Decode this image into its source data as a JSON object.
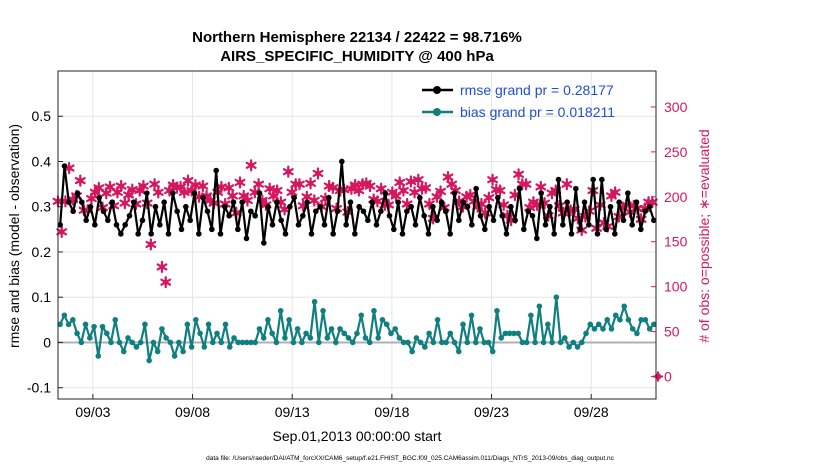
{
  "chart_data": {
    "type": "line",
    "title": "Northern Hemisphere 22134 / 22422 = 98.716%",
    "subtitle": "AIRS_SPECIFIC_HUMIDITY @ 400 hPa",
    "xlabel": "Sep.01,2013 00:00:00 start",
    "ylabel_left": "rmse and bias (model - observation)",
    "ylabel_right": "# of obs: o=possible; ∗=evaluated",
    "footer": "data file: /Users/raeder/DAI/ATM_forcXX/CAM6_setup/f.e21.FHIST_BGC.f09_025.CAM6assim.011/Diags_NTrS_2013-09/obs_diag_output.nc",
    "x_ticks": [
      "09/03",
      "09/08",
      "09/13",
      "09/18",
      "09/23",
      "09/28"
    ],
    "x_tick_days": [
      3,
      8,
      13,
      18,
      23,
      28
    ],
    "xlim_days": [
      1.25,
      31.25
    ],
    "ylim_left": [
      -0.125,
      0.6
    ],
    "yticks_left": [
      "-0.1",
      "0",
      "0.1",
      "0.2",
      "0.3",
      "0.4",
      "0.5"
    ],
    "ylim_right": [
      -25,
      340
    ],
    "yticks_right": [
      "0",
      "50",
      "100",
      "150",
      "200",
      "250",
      "300"
    ],
    "zero_line": 0,
    "grid": true,
    "legend_position": "top-right",
    "colors": {
      "rmse": "#000000",
      "bias": "#0f7f7f",
      "obs": "#d6175f",
      "legend_text": "#1f4fd0",
      "zero_line": "#b0b0b0",
      "grid": "#e6e6e6"
    },
    "series": [
      {
        "name": "rmse grand pr = 0.28177",
        "axis": "left",
        "values": [
          0.26,
          0.39,
          0.31,
          0.29,
          0.33,
          0.31,
          0.27,
          0.3,
          0.26,
          0.32,
          0.29,
          0.27,
          0.31,
          0.26,
          0.24,
          0.26,
          0.28,
          0.31,
          0.24,
          0.27,
          0.33,
          0.24,
          0.3,
          0.26,
          0.31,
          0.24,
          0.33,
          0.29,
          0.25,
          0.3,
          0.27,
          0.33,
          0.24,
          0.32,
          0.29,
          0.25,
          0.38,
          0.24,
          0.3,
          0.28,
          0.31,
          0.25,
          0.31,
          0.23,
          0.29,
          0.28,
          0.33,
          0.22,
          0.3,
          0.26,
          0.31,
          0.27,
          0.24,
          0.3,
          0.32,
          0.26,
          0.28,
          0.31,
          0.24,
          0.29,
          0.3,
          0.26,
          0.32,
          0.24,
          0.29,
          0.4,
          0.26,
          0.31,
          0.24,
          0.3,
          0.29,
          0.27,
          0.31,
          0.26,
          0.29,
          0.33,
          0.28,
          0.25,
          0.31,
          0.24,
          0.29,
          0.3,
          0.26,
          0.32,
          0.28,
          0.24,
          0.3,
          0.27,
          0.31,
          0.29,
          0.24,
          0.33,
          0.27,
          0.31,
          0.3,
          0.26,
          0.34,
          0.28,
          0.25,
          0.3,
          0.27,
          0.32,
          0.28,
          0.24,
          0.3,
          0.27,
          0.34,
          0.25,
          0.29,
          0.28,
          0.23,
          0.33,
          0.26,
          0.3,
          0.24,
          0.36,
          0.26,
          0.31,
          0.24,
          0.34,
          0.25,
          0.31,
          0.26,
          0.36,
          0.24,
          0.36,
          0.25,
          0.3,
          0.24,
          0.31,
          0.27,
          0.33,
          0.26,
          0.31,
          0.25,
          0.29,
          0.3,
          0.27
        ]
      },
      {
        "name": "bias grand pr = 0.018211",
        "axis": "left",
        "values": [
          0.04,
          0.06,
          0.04,
          0.05,
          0.02,
          0.0,
          0.04,
          0.01,
          0.035,
          -0.03,
          0.035,
          0.02,
          0.0,
          0.05,
          0.0,
          -0.02,
          0.01,
          0.0,
          -0.01,
          0.0,
          0.04,
          -0.04,
          0.0,
          -0.02,
          0.03,
          0.01,
          0.0,
          -0.03,
          0.0,
          -0.02,
          0.04,
          -0.01,
          0.05,
          0.02,
          -0.01,
          0.04,
          0.0,
          0.02,
          0.0,
          0.04,
          -0.01,
          0.01,
          0.0,
          0.0,
          0.0,
          0.0,
          0.0,
          0.03,
          0.01,
          0.05,
          0.02,
          0.0,
          0.07,
          0.01,
          0.05,
          0.0,
          0.03,
          0.0,
          0.02,
          0.01,
          0.09,
          0.0,
          0.07,
          0.01,
          0.03,
          0.0,
          0.03,
          0.02,
          0.01,
          0.0,
          0.02,
          0.06,
          0.01,
          0.0,
          0.07,
          0.01,
          0.05,
          0.04,
          0.02,
          0.03,
          0.01,
          0.0,
          0.0,
          -0.02,
          0.01,
          0.0,
          -0.01,
          0.02,
          0.0,
          0.05,
          0.0,
          0.0,
          0.02,
          0.0,
          -0.02,
          0.04,
          0.0,
          0.06,
          0.0,
          0.03,
          0.0,
          0.0,
          -0.02,
          0.07,
          0.01,
          0.02,
          0.02,
          0.02,
          0.02,
          0.0,
          0.0,
          0.06,
          0.0,
          0.08,
          0.0,
          0.04,
          0.0,
          0.1,
          0.0,
          0.01,
          -0.01,
          0.0,
          -0.01,
          0.0,
          0.02,
          0.04,
          0.03,
          0.04,
          0.03,
          0.05,
          0.03,
          0.06,
          0.05,
          0.08,
          0.05,
          0.03,
          0.02,
          0.05,
          0.05,
          0.03,
          0.04
        ]
      },
      {
        "axis": "right",
        "start_day": 1.25,
        "values": [
          195,
          161,
          195,
          232,
          197,
          201,
          218,
          185,
          185,
          198,
          205,
          210,
          188,
          204,
          211,
          190,
          205,
          212,
          193,
          202,
          208,
          192,
          207,
          212,
          193,
          147,
          214,
          205,
          122,
          105,
          207,
          213,
          210,
          211,
          205,
          218,
          207,
          213,
          200,
          212,
          201,
          196,
          193,
          205,
          211,
          192,
          210,
          201,
          182,
          216,
          201,
          196,
          235,
          205,
          214,
          196,
          191,
          209,
          201,
          207,
          194,
          186,
          228,
          205,
          214,
          214,
          190,
          200,
          215,
          196,
          226,
          189,
          198,
          212,
          210,
          187,
          207,
          208,
          183,
          209,
          213,
          207,
          214,
          215,
          212,
          197,
          195,
          209,
          191,
          191,
          205,
          201,
          216,
          207,
          192,
          217,
          205,
          219,
          209,
          210,
          192,
          176,
          200,
          206,
          188,
          222,
          214,
          207,
          195,
          189,
          200,
          202,
          195,
          189,
          192,
          182,
          199,
          219,
          208,
          207,
          191,
          179,
          174,
          202,
          225,
          214,
          214,
          188,
          194,
          191,
          211,
          193,
          179,
          204,
          207,
          190,
          182,
          214,
          185,
          186,
          176,
          163,
          178,
          184,
          207,
          165,
          191,
          171,
          167,
          201,
          205,
          178,
          188,
          191,
          183,
          190,
          187,
          175,
          187,
          194,
          194
        ]
      }
    ],
    "extra_point_right": {
      "day": 31.35,
      "value": 0
    }
  }
}
